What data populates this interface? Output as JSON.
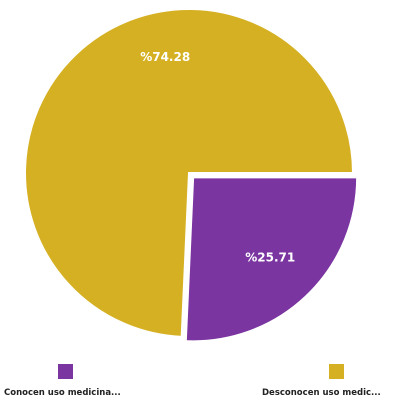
{
  "chart_data": {
    "type": "pie",
    "slices": [
      {
        "name": "Conocen uso medicina...",
        "label": "%25.71",
        "value": 25.71,
        "color": "#7a35a0"
      },
      {
        "name": "Desconocen uso medic...",
        "label": "%74.28",
        "value": 74.28,
        "color": "#d5b022"
      }
    ],
    "legend_position": "bottom"
  }
}
